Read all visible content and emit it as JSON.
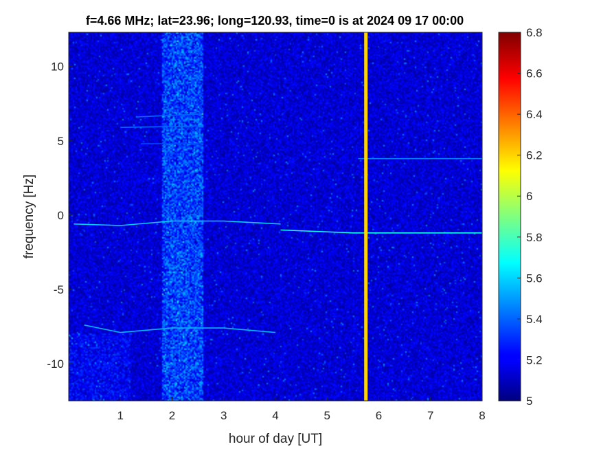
{
  "chart_data": {
    "type": "heatmap",
    "title": "f=4.66 MHz;  lat=23.96; long=120.93, time=0 is at 2024 09 17 00:00",
    "xlabel": "hour of day [UT]",
    "ylabel": "frequency [Hz]",
    "xlim": [
      0,
      8
    ],
    "ylim": [
      -12.5,
      12.3
    ],
    "xticks": [
      1,
      2,
      3,
      4,
      5,
      6,
      7,
      8
    ],
    "yticks": [
      -10,
      -5,
      0,
      5,
      10
    ],
    "colorbar": {
      "range": [
        5,
        6.8
      ],
      "ticks": [
        5,
        5.2,
        5.4,
        5.6,
        5.8,
        6,
        6.2,
        6.4,
        6.6,
        6.8
      ],
      "colormap": "jet"
    },
    "background_level": 5.15,
    "noisy_band": {
      "x_range": [
        1.8,
        2.6
      ],
      "level": 5.45
    },
    "vertical_band": {
      "x": 5.75,
      "level": 6.2
    },
    "traces": [
      {
        "name": "",
        "points": [
          [
            0.1,
            -0.6
          ],
          [
            1.0,
            -0.7
          ],
          [
            2.0,
            -0.4
          ],
          [
            3.0,
            -0.4
          ],
          [
            4.1,
            -0.6
          ]
        ],
        "level": 5.6
      },
      {
        "name": "",
        "points": [
          [
            4.1,
            -1.0
          ],
          [
            5.5,
            -1.2
          ],
          [
            6.5,
            -1.2
          ],
          [
            8.0,
            -1.2
          ]
        ],
        "level": 5.7
      },
      {
        "name": "",
        "points": [
          [
            0.3,
            -7.4
          ],
          [
            1.0,
            -7.9
          ],
          [
            2.0,
            -7.6
          ],
          [
            3.0,
            -7.6
          ],
          [
            4.0,
            -7.9
          ]
        ],
        "level": 5.55
      },
      {
        "name": "",
        "points": [
          [
            1.3,
            6.6
          ],
          [
            2.5,
            6.8
          ]
        ],
        "level": 5.4
      },
      {
        "name": "",
        "points": [
          [
            1.0,
            5.9
          ],
          [
            2.6,
            6.0
          ]
        ],
        "level": 5.4
      },
      {
        "name": "",
        "points": [
          [
            1.4,
            4.8
          ],
          [
            2.6,
            4.8
          ]
        ],
        "level": 5.35
      },
      {
        "name": "",
        "points": [
          [
            5.6,
            3.8
          ],
          [
            8.0,
            3.8
          ]
        ],
        "level": 5.45
      }
    ]
  }
}
